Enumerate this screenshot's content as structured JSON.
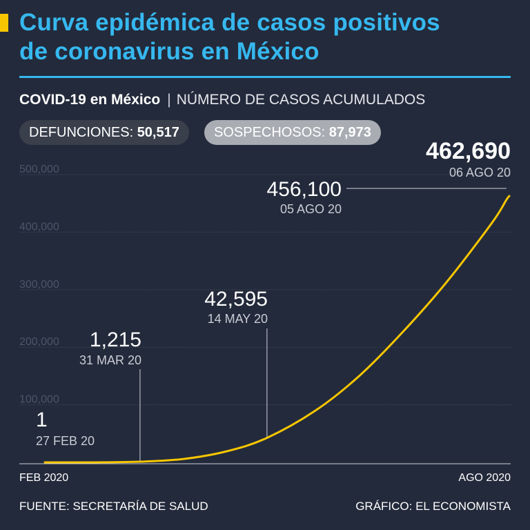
{
  "header": {
    "title_line1": "Curva epidémica de casos positivos",
    "title_line2": "de coronavirus en México"
  },
  "subtitle": {
    "bold": "COVID-19 en México",
    "separator": "|",
    "light": "NÚMERO DE CASOS ACUMULADOS"
  },
  "stats": {
    "deaths_label": "DEFUNCIONES:",
    "deaths_value": "50,517",
    "suspects_label": "SOSPECHOSOS:",
    "suspects_value": "87,973"
  },
  "footer": {
    "source": "FUENTE: SECRETARÍA DE SALUD",
    "credit": "GRÁFICO: EL ECONOMISTA"
  },
  "colors": {
    "background": "#232a3b",
    "title": "#36b8ef",
    "line": "#f7c600",
    "accent": "#f7c600"
  },
  "chart_data": {
    "type": "line",
    "title": "NÚMERO DE CASOS ACUMULADOS",
    "x_start_label": "FEB 2020",
    "x_end_label": "AGO 2020",
    "x_range": [
      "2020-02-27",
      "2020-08-06"
    ],
    "y_ticks": [
      100000,
      200000,
      300000,
      400000,
      500000
    ],
    "y_tick_labels": [
      "100,000",
      "200,000",
      "300,000",
      "400,000",
      "500,000"
    ],
    "ylim": [
      0,
      500000
    ],
    "grid": true,
    "series": [
      {
        "points": [
          {
            "x": "2020-02-27",
            "y": 1
          },
          {
            "x": "2020-03-15",
            "y": 53
          },
          {
            "x": "2020-03-31",
            "y": 1215
          },
          {
            "x": "2020-04-15",
            "y": 5847
          },
          {
            "x": "2020-04-30",
            "y": 19224
          },
          {
            "x": "2020-05-14",
            "y": 42595
          },
          {
            "x": "2020-05-31",
            "y": 90664
          },
          {
            "x": "2020-06-15",
            "y": 150264
          },
          {
            "x": "2020-06-30",
            "y": 226089
          },
          {
            "x": "2020-07-15",
            "y": 311486
          },
          {
            "x": "2020-07-31",
            "y": 416179
          },
          {
            "x": "2020-08-05",
            "y": 456100
          },
          {
            "x": "2020-08-06",
            "y": 462690
          }
        ]
      }
    ],
    "annotations": [
      {
        "x": "2020-02-27",
        "y": 1,
        "value": "1",
        "date": "27 FEB 20"
      },
      {
        "x": "2020-03-31",
        "y": 1215,
        "value": "1,215",
        "date": "31 MAR 20"
      },
      {
        "x": "2020-05-14",
        "y": 42595,
        "value": "42,595",
        "date": "14 MAY 20"
      },
      {
        "x": "2020-08-05",
        "y": 456100,
        "value": "456,100",
        "date": "05 AGO 20"
      },
      {
        "x": "2020-08-06",
        "y": 462690,
        "value": "462,690",
        "date": "06 AGO 20"
      }
    ]
  }
}
